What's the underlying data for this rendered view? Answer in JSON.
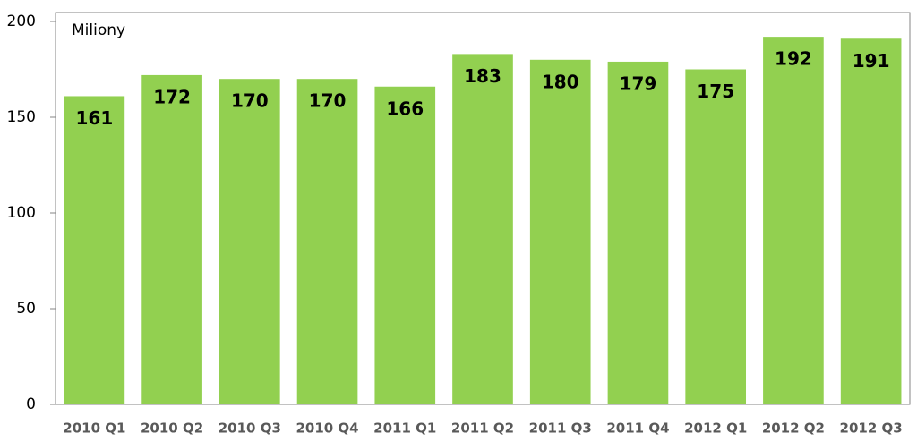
{
  "chart_data": {
    "type": "bar",
    "annotation": "Miliony",
    "categories": [
      "2010 Q1",
      "2010 Q2",
      "2010 Q3",
      "2010 Q4",
      "2011 Q1",
      "2011 Q2",
      "2011 Q3",
      "2011 Q4",
      "2012 Q1",
      "2012 Q2",
      "2012 Q3"
    ],
    "values": [
      161,
      172,
      170,
      170,
      166,
      183,
      180,
      179,
      175,
      192,
      191
    ],
    "color": "#92d050",
    "ylim": [
      0,
      200
    ],
    "yticks": [
      0,
      50,
      100,
      150,
      200
    ],
    "grid": false
  }
}
